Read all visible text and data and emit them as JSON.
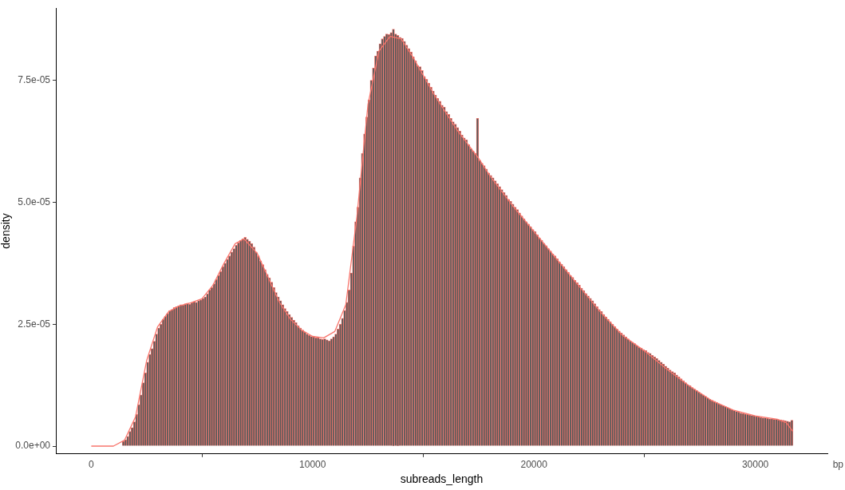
{
  "chart_data": {
    "type": "histogram",
    "xlabel": "subreads_length",
    "ylabel": "density",
    "xlim": [
      -1600,
      33260
    ],
    "ylim": [
      -1.6e-06,
      8.98e-05
    ],
    "xticks": [
      0,
      10000,
      20000,
      30000
    ],
    "annotations": [
      "bp"
    ],
    "yticks": [
      {
        "value": 0,
        "label": "0.0e+00"
      },
      {
        "value": 2.5e-05,
        "label": "2.5e-05"
      },
      {
        "value": 5e-05,
        "label": "5.0e-05"
      },
      {
        "value": 7.5e-05,
        "label": "7.5e-05"
      }
    ],
    "grid": false,
    "legend": false,
    "series": [
      {
        "color": "#595959",
        "bins": [
          1200,
          1300,
          1400,
          1500,
          1600,
          1700,
          1800,
          1900,
          2000,
          2100,
          2200,
          2300,
          2400,
          2500,
          2600,
          2700,
          2800,
          2900,
          3000,
          3100,
          3200,
          3300,
          3400,
          3500,
          3600,
          3700,
          3800,
          3900,
          4000,
          4100,
          4200,
          4300,
          4400,
          4500,
          4600,
          4700,
          4800,
          4900,
          5000,
          5100,
          5200,
          5300,
          5400,
          5500,
          5600,
          5700,
          5800,
          5900,
          6000,
          6100,
          6200,
          6300,
          6400,
          6500,
          6600,
          6700,
          6800,
          6900,
          7000,
          7100,
          7200,
          7300,
          7400,
          7500,
          7600,
          7700,
          7800,
          7900,
          8000,
          8100,
          8200,
          8300,
          8400,
          8500,
          8600,
          8700,
          8800,
          8900,
          9000,
          9100,
          9200,
          9300,
          9400,
          9500,
          9600,
          9700,
          9800,
          9900,
          10000,
          10100,
          10200,
          10300,
          10400,
          10500,
          10600,
          10700,
          10800,
          10900,
          11000,
          11100,
          11200,
          11300,
          11400,
          11500,
          11600,
          11700,
          11800,
          11900,
          12000,
          12100,
          12200,
          12300,
          12400,
          12500,
          12600,
          12700,
          12800,
          12900,
          13000,
          13100,
          13200,
          13300,
          13400,
          13500,
          13600,
          13700,
          13800,
          13900,
          14000,
          14100,
          14200,
          14300,
          14400,
          14500,
          14600,
          14700,
          14800,
          14900,
          15000,
          15100,
          15200,
          15300,
          15400,
          15500,
          15600,
          15700,
          15800,
          15900,
          16000,
          16100,
          16200,
          16300,
          16400,
          16500,
          16600,
          16700,
          16800,
          16900,
          17000,
          17100,
          17200,
          17300,
          17400,
          17500,
          17600,
          17700,
          17800,
          17900,
          18000,
          18100,
          18200,
          18300,
          18400,
          18500,
          18600,
          18700,
          18800,
          18900,
          19000,
          19100,
          19200,
          19300,
          19400,
          19500,
          19600,
          19700,
          19800,
          19900,
          20000,
          20100,
          20200,
          20300,
          20400,
          20500,
          20600,
          20700,
          20800,
          20900,
          21000,
          21100,
          21200,
          21300,
          21400,
          21500,
          21600,
          21700,
          21800,
          21900,
          22000,
          22100,
          22200,
          22300,
          22400,
          22500,
          22600,
          22700,
          22800,
          22900,
          23000,
          23100,
          23200,
          23300,
          23400,
          23500,
          23600,
          23700,
          23800,
          23900,
          24000,
          24100,
          24200,
          24300,
          24400,
          24500,
          24600,
          24700,
          24800,
          24900,
          25000,
          25100,
          25200,
          25300,
          25400,
          25500,
          25600,
          25700,
          25800,
          25900,
          26000,
          26100,
          26200,
          26300,
          26400,
          26500,
          26600,
          26700,
          26800,
          26900,
          27000,
          27100,
          27200,
          27300,
          27400,
          27500,
          27600,
          27700,
          27800,
          27900,
          28000,
          28100,
          28200,
          28300,
          28400,
          28500,
          28600,
          28700,
          28800,
          28900,
          29000,
          29100,
          29200,
          29300,
          29400,
          29500,
          29600,
          29700,
          29800,
          29900,
          30000,
          30100,
          30200,
          30300,
          30400,
          30500,
          30600,
          30700,
          30800,
          30900,
          31000,
          31100,
          31200,
          31300,
          31400,
          31500,
          31600,
          31700
        ],
        "values": [
          0,
          0,
          1e-06,
          1.3e-06,
          2e-06,
          3e-06,
          3.8e-06,
          5e-06,
          6.5e-06,
          8.5e-06,
          1.05e-05,
          1.3e-05,
          1.5e-05,
          1.72e-05,
          1.88e-05,
          2e-05,
          2.15e-05,
          2.3e-05,
          2.42e-05,
          2.5e-05,
          2.6e-05,
          2.66e-05,
          2.72e-05,
          2.78e-05,
          2.8e-05,
          2.84e-05,
          2.86e-05,
          2.88e-05,
          2.9e-05,
          2.89e-05,
          2.92e-05,
          2.93e-05,
          2.91e-05,
          2.94e-05,
          2.96e-05,
          2.95e-05,
          2.98e-05,
          3e-05,
          3.03e-05,
          3.06e-05,
          3.12e-05,
          3.2e-05,
          3.25e-05,
          3.33e-05,
          3.42e-05,
          3.5e-05,
          3.58e-05,
          3.68e-05,
          3.75e-05,
          3.83e-05,
          3.9e-05,
          3.98e-05,
          4.05e-05,
          4.12e-05,
          4.17e-05,
          4.22e-05,
          4.25e-05,
          4.28e-05,
          4.24e-05,
          4.2e-05,
          4.15e-05,
          4.08e-05,
          3.98e-05,
          3.9e-05,
          3.8e-05,
          3.72e-05,
          3.62e-05,
          3.52e-05,
          3.45e-05,
          3.36e-05,
          3.25e-05,
          3.15e-05,
          3.06e-05,
          2.98e-05,
          2.9e-05,
          2.82e-05,
          2.76e-05,
          2.7e-05,
          2.64e-05,
          2.58e-05,
          2.53e-05,
          2.47e-05,
          2.42e-05,
          2.38e-05,
          2.34e-05,
          2.3e-05,
          2.27e-05,
          2.25e-05,
          2.24e-05,
          2.22e-05,
          2.22e-05,
          2.2e-05,
          2.19e-05,
          2.2e-05,
          2.18e-05,
          2.16e-05,
          2.2e-05,
          2.24e-05,
          2.3e-05,
          2.4e-05,
          2.5e-05,
          2.62e-05,
          2.78e-05,
          2.95e-05,
          3.2e-05,
          3.55e-05,
          4.1e-05,
          4.6e-05,
          4.9e-05,
          5.5e-05,
          6e-05,
          6.4e-05,
          6.75e-05,
          7.1e-05,
          7.5e-05,
          7.75e-05,
          8e-05,
          8.1e-05,
          8.25e-05,
          8.35e-05,
          8.4e-05,
          8.45e-05,
          8.44e-05,
          8.48e-05,
          8.55e-05,
          8.45e-05,
          8.42e-05,
          8.38e-05,
          8.36e-05,
          8.3e-05,
          8.22e-05,
          8.15e-05,
          8.08e-05,
          7.98e-05,
          7.9e-05,
          7.8e-05,
          7.78e-05,
          7.7e-05,
          7.58e-05,
          7.52e-05,
          7.44e-05,
          7.36e-05,
          7.28e-05,
          7.2e-05,
          7.13e-05,
          7.07e-05,
          6.99e-05,
          6.95e-05,
          6.86e-05,
          6.8e-05,
          6.72e-05,
          6.65e-05,
          6.6e-05,
          6.53e-05,
          6.46e-05,
          6.38e-05,
          6.32e-05,
          6.28e-05,
          6.18e-05,
          6.1e-05,
          6.05e-05,
          6e-05,
          6.72e-05,
          5.86e-05,
          5.8e-05,
          5.75e-05,
          5.68e-05,
          5.6e-05,
          5.55e-05,
          5.5e-05,
          5.44e-05,
          5.38e-05,
          5.32e-05,
          5.26e-05,
          5.2e-05,
          5.14e-05,
          5.06e-05,
          5.02e-05,
          4.96e-05,
          4.9e-05,
          4.85e-05,
          4.78e-05,
          4.72e-05,
          4.66e-05,
          4.6e-05,
          4.55e-05,
          4.5e-05,
          4.44e-05,
          4.4e-05,
          4.33e-05,
          4.27e-05,
          4.22e-05,
          4.16e-05,
          4.11e-05,
          4.05e-05,
          4e-05,
          3.94e-05,
          3.9e-05,
          3.84e-05,
          3.78e-05,
          3.73e-05,
          3.68e-05,
          3.62e-05,
          3.56e-05,
          3.5e-05,
          3.46e-05,
          3.4e-05,
          3.35e-05,
          3.3e-05,
          3.24e-05,
          3.19e-05,
          3.13e-05,
          3.08e-05,
          3.03e-05,
          2.98e-05,
          2.92e-05,
          2.86e-05,
          2.8e-05,
          2.76e-05,
          2.7e-05,
          2.65e-05,
          2.6e-05,
          2.55e-05,
          2.5e-05,
          2.45e-05,
          2.4e-05,
          2.36e-05,
          2.32e-05,
          2.28e-05,
          2.24e-05,
          2.2e-05,
          2.16e-05,
          2.13e-05,
          2.1e-05,
          2.06e-05,
          2.03e-05,
          2.01e-05,
          1.98e-05,
          1.96e-05,
          1.92e-05,
          1.9e-05,
          1.86e-05,
          1.83e-05,
          1.8e-05,
          1.76e-05,
          1.72e-05,
          1.68e-05,
          1.64e-05,
          1.6e-05,
          1.56e-05,
          1.53e-05,
          1.5e-05,
          1.46e-05,
          1.42e-05,
          1.38e-05,
          1.34e-05,
          1.3e-05,
          1.26e-05,
          1.24e-05,
          1.2e-05,
          1.17e-05,
          1.14e-05,
          1.11e-05,
          1.08e-05,
          1.05e-05,
          1.02e-05,
          9.9e-06,
          9.6e-06,
          9.4e-06,
          9.2e-06,
          9e-06,
          8.7e-06,
          8.5e-06,
          8.3e-06,
          8.1e-06,
          7.9e-06,
          7.7e-06,
          7.5e-06,
          7.3e-06,
          7.1e-06,
          7e-06,
          6.8e-06,
          6.7e-06,
          6.6e-06,
          6.5e-06,
          6.4e-06,
          6.3e-06,
          6.2e-06,
          6.1e-06,
          6e-06,
          5.9e-06,
          5.8e-06,
          5.8e-06,
          5.7e-06,
          5.6e-06,
          5.6e-06,
          5.5e-06,
          5.5e-06,
          5.4e-06,
          5.4e-06,
          5.3e-06,
          5.2e-06,
          5.1e-06,
          5e-06,
          5.3e-06
        ]
      },
      {
        "type": "line",
        "color": "#f8766d",
        "marker": "none",
        "line_style": "solid",
        "x": [
          0,
          1000,
          1500,
          2000,
          2500,
          3000,
          3500,
          4000,
          4500,
          5000,
          5500,
          6000,
          6500,
          6900,
          7500,
          8000,
          8500,
          9000,
          9500,
          10000,
          10500,
          11000,
          11500,
          12000,
          12500,
          13000,
          13500,
          14000,
          14500,
          15000,
          15500,
          16000,
          16500,
          17000,
          17500,
          18000,
          19000,
          20000,
          21000,
          22000,
          23000,
          24000,
          25000,
          26000,
          27000,
          28000,
          29000,
          30000,
          31000,
          31400,
          31700
        ],
        "values": [
          0,
          0,
          1.2e-06,
          6e-06,
          1.75e-05,
          2.45e-05,
          2.76e-05,
          2.88e-05,
          2.94e-05,
          3.02e-05,
          3.3e-05,
          3.75e-05,
          4.15e-05,
          4.25e-05,
          3.95e-05,
          3.45e-05,
          2.95e-05,
          2.6e-05,
          2.38e-05,
          2.25e-05,
          2.22e-05,
          2.35e-05,
          2.9e-05,
          4.7e-05,
          7e-05,
          8.1e-05,
          8.4e-05,
          8.35e-05,
          8e-05,
          7.6e-05,
          7.2e-05,
          6.85e-05,
          6.5e-05,
          6.2e-05,
          5.9e-05,
          5.55e-05,
          4.95e-05,
          4.4e-05,
          3.85e-05,
          3.3e-05,
          2.75e-05,
          2.27e-05,
          1.95e-05,
          1.58e-05,
          1.24e-05,
          9.4e-06,
          7.4e-06,
          6.2e-06,
          5.5e-06,
          4.8e-06,
          3e-06
        ]
      }
    ]
  }
}
